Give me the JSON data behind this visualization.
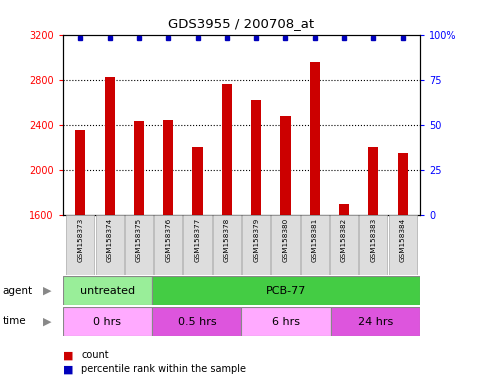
{
  "title": "GDS3955 / 200708_at",
  "samples": [
    "GSM158373",
    "GSM158374",
    "GSM158375",
    "GSM158376",
    "GSM158377",
    "GSM158378",
    "GSM158379",
    "GSM158380",
    "GSM158381",
    "GSM158382",
    "GSM158383",
    "GSM158384"
  ],
  "counts": [
    2350,
    2820,
    2430,
    2440,
    2200,
    2760,
    2620,
    2480,
    2960,
    1700,
    2200,
    2150
  ],
  "ylim_left": [
    1600,
    3200
  ],
  "ylim_right": [
    0,
    100
  ],
  "yticks_left": [
    1600,
    2000,
    2400,
    2800,
    3200
  ],
  "yticks_right": [
    0,
    25,
    50,
    75,
    100
  ],
  "bar_color": "#cc0000",
  "dot_color": "#0000bb",
  "bar_width": 0.35,
  "agent_groups": [
    {
      "label": "untreated",
      "start": 0,
      "end": 3,
      "color": "#99ee99"
    },
    {
      "label": "PCB-77",
      "start": 3,
      "end": 12,
      "color": "#44cc44"
    }
  ],
  "time_groups": [
    {
      "label": "0 hrs",
      "start": 0,
      "end": 3,
      "color": "#ffaaff"
    },
    {
      "label": "0.5 hrs",
      "start": 3,
      "end": 6,
      "color": "#dd55dd"
    },
    {
      "label": "6 hrs",
      "start": 6,
      "end": 9,
      "color": "#ffaaff"
    },
    {
      "label": "24 hrs",
      "start": 9,
      "end": 12,
      "color": "#dd55dd"
    }
  ],
  "legend_count_label": "count",
  "legend_pct_label": "percentile rank within the sample",
  "bg_color": "#ffffff",
  "plot_bg_color": "#ffffff",
  "grid_dotted": [
    2000,
    2400,
    2800
  ]
}
